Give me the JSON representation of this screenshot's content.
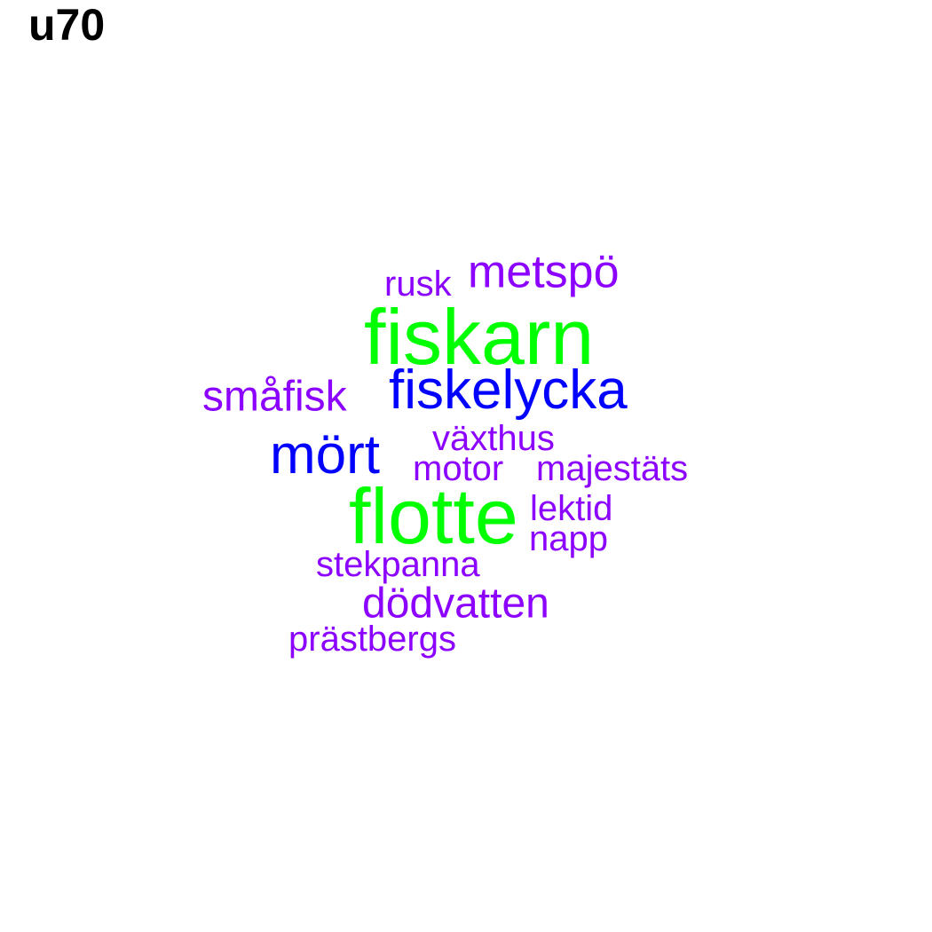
{
  "title": "u70",
  "colors": {
    "high": "#00ff00",
    "mid": "#0000ff",
    "low": "#8b00ff"
  },
  "words": [
    {
      "text": "fiskarn",
      "level": "high"
    },
    {
      "text": "flotte",
      "level": "high"
    },
    {
      "text": "fiskelycka",
      "level": "mid"
    },
    {
      "text": "mört",
      "level": "mid"
    },
    {
      "text": "metspö",
      "level": "low"
    },
    {
      "text": "rusk",
      "level": "low"
    },
    {
      "text": "småfisk",
      "level": "low"
    },
    {
      "text": "växthus",
      "level": "low"
    },
    {
      "text": "motor",
      "level": "low"
    },
    {
      "text": "majestäts",
      "level": "low"
    },
    {
      "text": "lektid",
      "level": "low"
    },
    {
      "text": "napp",
      "level": "low"
    },
    {
      "text": "stekpanna",
      "level": "low"
    },
    {
      "text": "dödvatten",
      "level": "low"
    },
    {
      "text": "prästbergs",
      "level": "low"
    }
  ]
}
